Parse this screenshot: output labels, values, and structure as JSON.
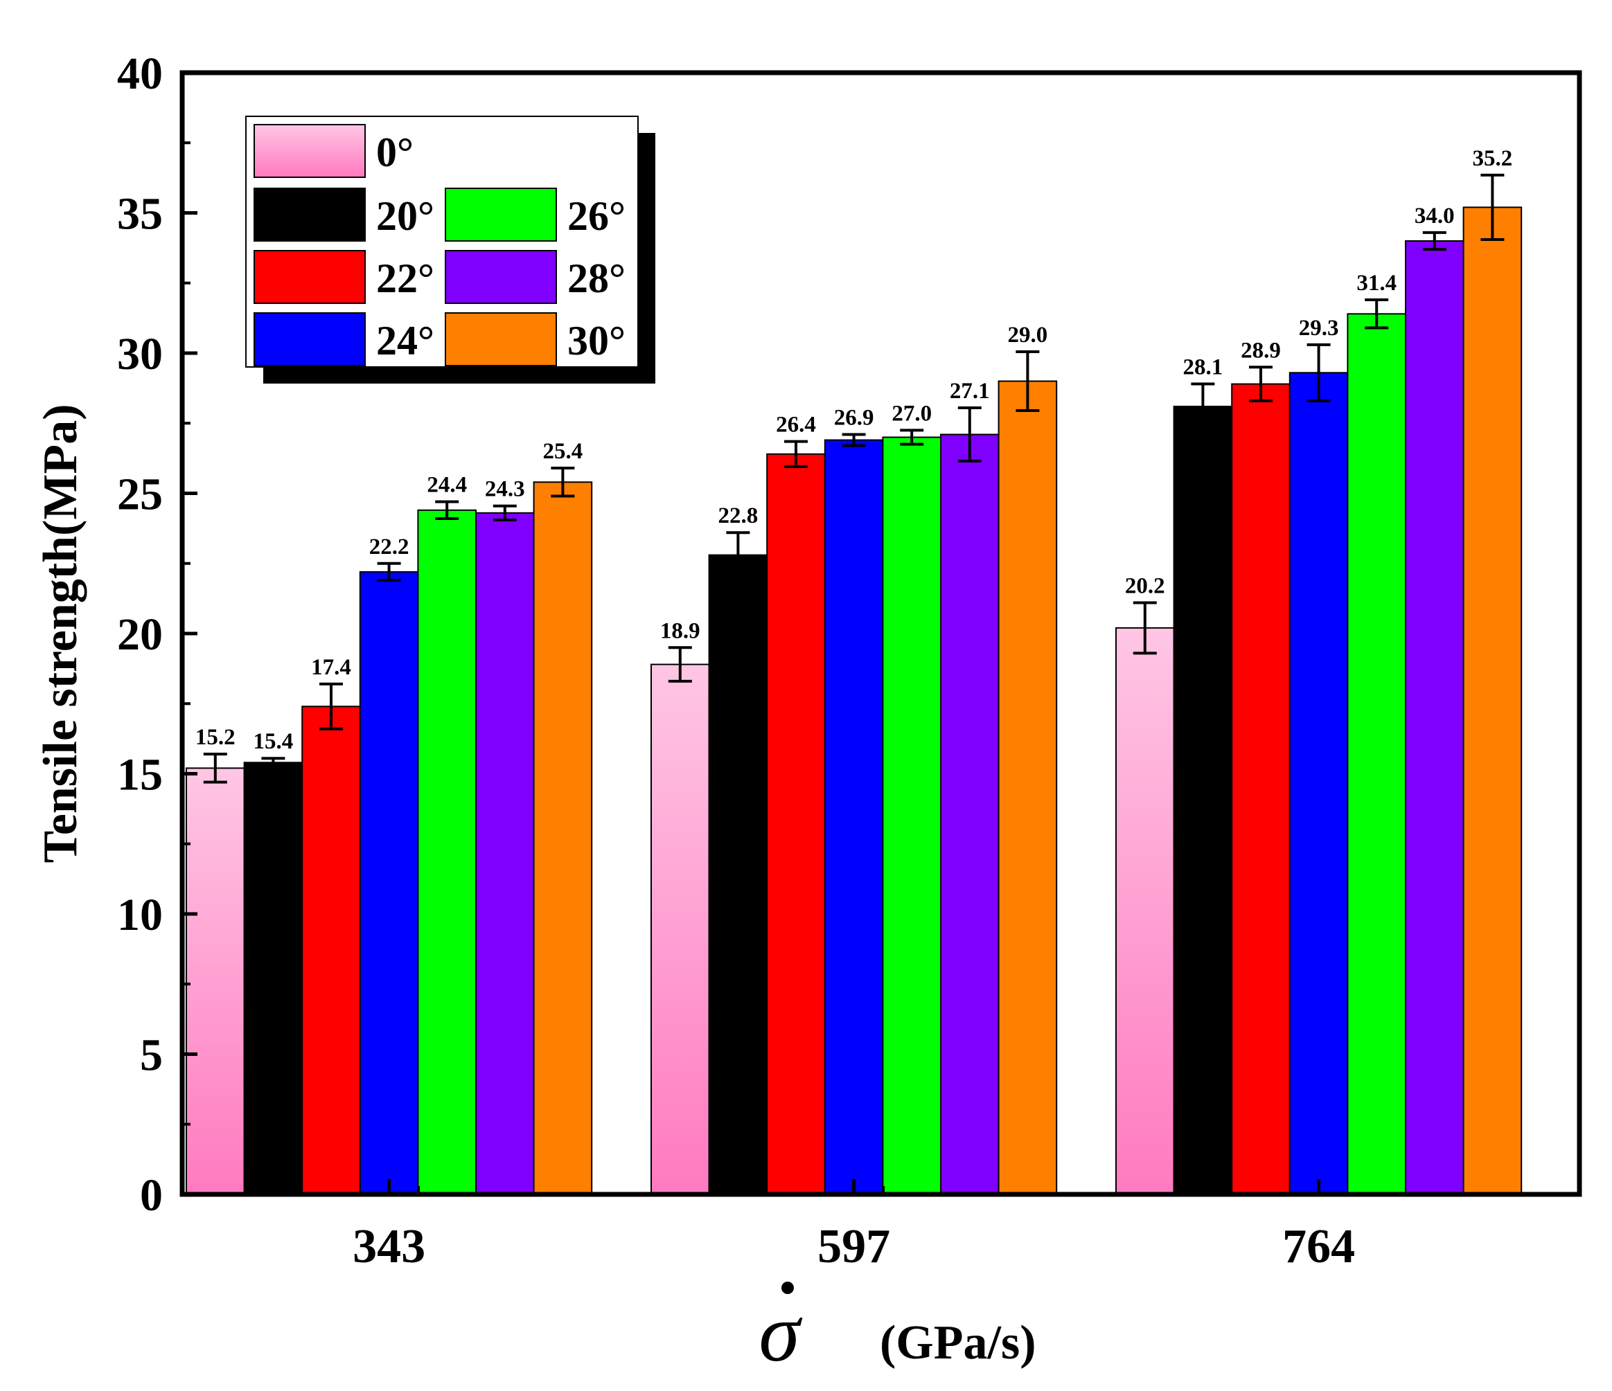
{
  "chart_data": {
    "type": "bar",
    "categories": [
      "343",
      "597",
      "764"
    ],
    "xlabel": "(GPa/s)",
    "xlabel_symbol": "σ",
    "ylabel": "Tensile strength(MPa)",
    "ylim": [
      0,
      40
    ],
    "yticks": [
      "0",
      "5",
      "10",
      "15",
      "20",
      "25",
      "30",
      "35",
      "40"
    ],
    "grid": false,
    "legend_position": "top-left",
    "series": [
      {
        "name": "0°",
        "color": "#ff88c8",
        "values": [
          15.2,
          18.9,
          20.2
        ],
        "value_labels": [
          "15.2",
          "18.9",
          "20.2"
        ],
        "errors": [
          0.5,
          0.6,
          0.9
        ]
      },
      {
        "name": "20°",
        "color": "#000000",
        "values": [
          15.4,
          22.8,
          28.1
        ],
        "value_labels": [
          "15.4",
          "22.8",
          "28.1"
        ],
        "errors": [
          0.15,
          0.8,
          0.8
        ]
      },
      {
        "name": "22°",
        "color": "#ff0000",
        "values": [
          17.4,
          26.4,
          28.9
        ],
        "value_labels": [
          "17.4",
          "26.4",
          "28.9"
        ],
        "errors": [
          0.8,
          0.45,
          0.6
        ]
      },
      {
        "name": "24°",
        "color": "#0000ff",
        "values": [
          22.2,
          26.9,
          29.3
        ],
        "value_labels": [
          "22.2",
          "26.9",
          "29.3"
        ],
        "errors": [
          0.3,
          0.2,
          1.0
        ]
      },
      {
        "name": "26°",
        "color": "#00ff00",
        "values": [
          24.4,
          27.0,
          31.4
        ],
        "value_labels": [
          "24.4",
          "27.0",
          "31.4"
        ],
        "errors": [
          0.3,
          0.25,
          0.5
        ]
      },
      {
        "name": "28°",
        "color": "#8000ff",
        "values": [
          24.3,
          27.1,
          34.0
        ],
        "value_labels": [
          "24.3",
          "27.1",
          "34.0"
        ],
        "errors": [
          0.25,
          0.95,
          0.3
        ]
      },
      {
        "name": "30°",
        "color": "#ff8000",
        "values": [
          25.4,
          29.0,
          35.2
        ],
        "value_labels": [
          "25.4",
          "29.0",
          "35.2"
        ],
        "errors": [
          0.5,
          1.05,
          1.15
        ]
      }
    ]
  }
}
